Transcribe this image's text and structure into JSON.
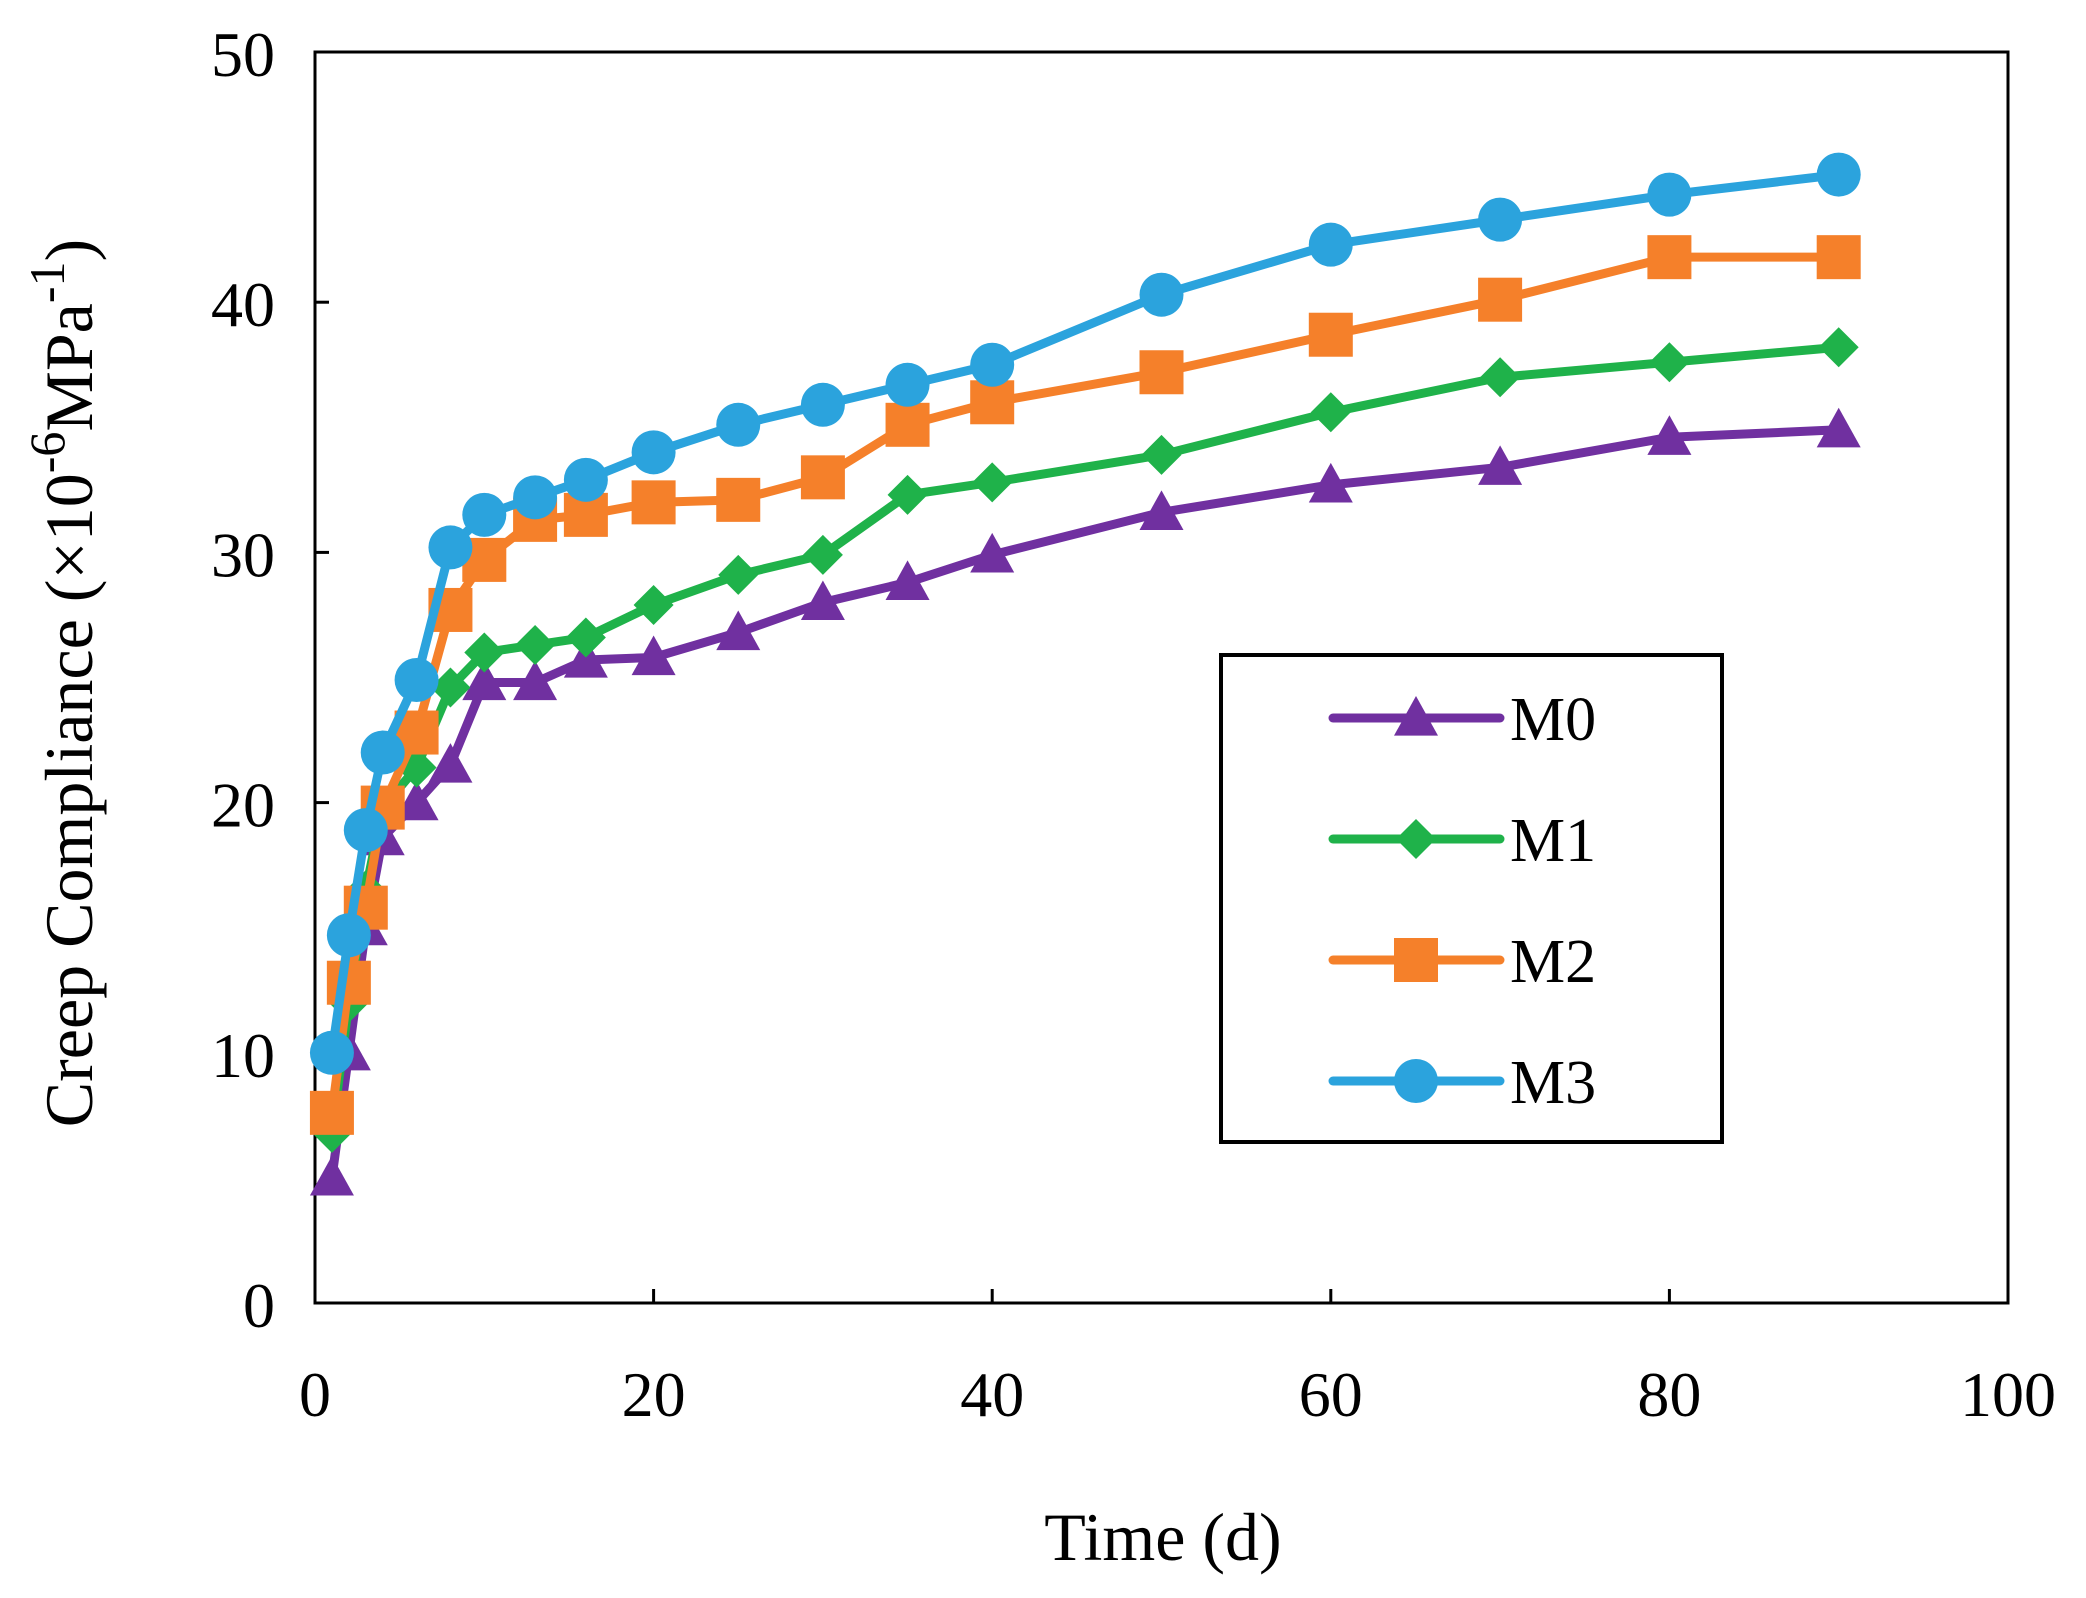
{
  "chart_data": {
    "type": "line",
    "xlabel": "Time (d)",
    "ylabel_parts": {
      "prefix": "Creep Compliance (×10",
      "exp1": "-6",
      "mid": "MPa",
      "exp2": "-1",
      "suffix": ")"
    },
    "xlim": [
      0,
      100
    ],
    "ylim": [
      0,
      50
    ],
    "xticks": [
      "0",
      "20",
      "40",
      "60",
      "80",
      "100"
    ],
    "yticks": [
      "0",
      "10",
      "20",
      "30",
      "40",
      "50"
    ],
    "grid": false,
    "legend_position": "right",
    "x": [
      1,
      2,
      3,
      4,
      6,
      8,
      10,
      13,
      16,
      20,
      25,
      30,
      35,
      40,
      50,
      60,
      70,
      80,
      90
    ],
    "series": [
      {
        "name": "M0",
        "color": "#7030A0",
        "marker": "triangle",
        "values": [
          5.0,
          10.0,
          15.0,
          18.6,
          20.0,
          21.5,
          24.8,
          24.8,
          25.7,
          25.8,
          26.8,
          28.0,
          28.8,
          29.9,
          31.6,
          32.7,
          33.4,
          34.6,
          34.9
        ]
      },
      {
        "name": "M1",
        "color": "#1FB24A",
        "marker": "diamond",
        "values": [
          6.8,
          12.0,
          16.5,
          19.8,
          21.4,
          24.6,
          26.0,
          26.3,
          26.6,
          27.9,
          29.1,
          29.9,
          32.3,
          32.8,
          33.9,
          35.6,
          37.0,
          37.6,
          38.2
        ]
      },
      {
        "name": "M2",
        "color": "#F5802A",
        "marker": "square",
        "values": [
          7.6,
          12.8,
          15.8,
          19.8,
          22.8,
          27.7,
          29.7,
          31.3,
          31.5,
          32.0,
          32.1,
          33.0,
          35.1,
          36.0,
          37.2,
          38.7,
          40.1,
          41.8,
          41.8
        ]
      },
      {
        "name": "M3",
        "color": "#2BA3DD",
        "marker": "circle",
        "values": [
          10.0,
          14.7,
          18.9,
          22.0,
          24.9,
          30.2,
          31.5,
          32.2,
          32.9,
          34.0,
          35.1,
          35.9,
          36.7,
          37.5,
          40.3,
          42.3,
          43.3,
          44.3,
          45.1
        ]
      }
    ]
  }
}
